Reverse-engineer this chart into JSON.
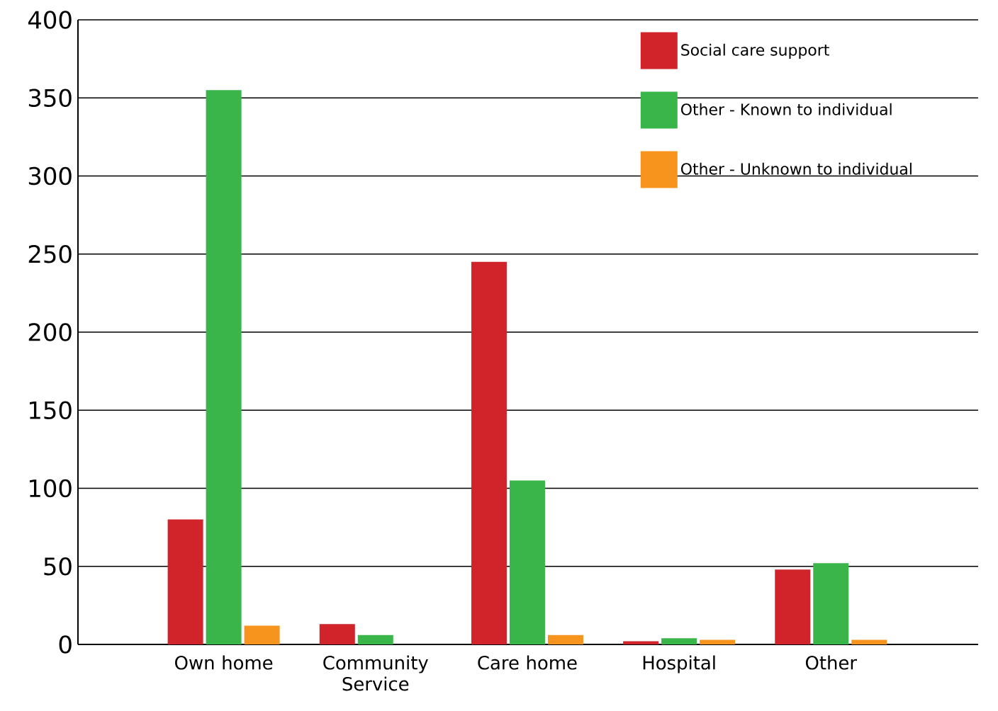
{
  "chart_data": {
    "type": "bar",
    "categories": [
      "Own home",
      "Community Service",
      "Care home",
      "Hospital",
      "Other"
    ],
    "series": [
      {
        "name": "Social care support",
        "color": "#d0232a",
        "values": [
          80,
          13,
          245,
          2,
          48
        ]
      },
      {
        "name": "Other - Known to individual",
        "color": "#3ab54a",
        "values": [
          355,
          6,
          105,
          4,
          52
        ]
      },
      {
        "name": "Other - Unknown to individual",
        "color": "#f7941d",
        "values": [
          12,
          0,
          6,
          3,
          3
        ]
      }
    ],
    "ylim": [
      0,
      400
    ],
    "yticks": [
      0,
      50,
      100,
      150,
      200,
      250,
      300,
      350,
      400
    ],
    "grid": "y",
    "legend": "top right"
  }
}
